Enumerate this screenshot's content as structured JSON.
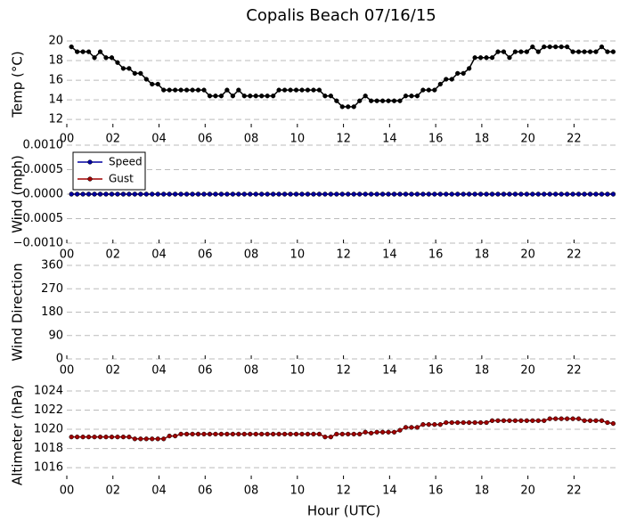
{
  "chart_data": [
    {
      "type": "line",
      "title": "Copalis Beach 07/16/15",
      "ylabel": "Temp (°C)",
      "x": [
        0.2,
        0.45,
        0.7,
        0.95,
        1.2,
        1.45,
        1.7,
        1.95,
        2.2,
        2.45,
        2.7,
        2.95,
        3.2,
        3.45,
        3.7,
        3.95,
        4.2,
        4.45,
        4.7,
        4.95,
        5.2,
        5.45,
        5.7,
        5.95,
        6.2,
        6.45,
        6.7,
        6.95,
        7.2,
        7.45,
        7.7,
        7.95,
        8.2,
        8.45,
        8.7,
        8.95,
        9.2,
        9.45,
        9.7,
        9.95,
        10.2,
        10.45,
        10.7,
        10.95,
        11.2,
        11.45,
        11.7,
        11.95,
        12.2,
        12.45,
        12.7,
        12.95,
        13.2,
        13.45,
        13.7,
        13.95,
        14.2,
        14.45,
        14.7,
        14.95,
        15.2,
        15.45,
        15.7,
        15.95,
        16.2,
        16.45,
        16.7,
        16.95,
        17.2,
        17.45,
        17.7,
        17.95,
        18.2,
        18.45,
        18.7,
        18.95,
        19.2,
        19.45,
        19.7,
        19.95,
        20.2,
        20.45,
        20.7,
        20.95,
        21.2,
        21.45,
        21.7,
        21.95,
        22.2,
        22.45,
        22.7,
        22.95,
        23.2,
        23.45,
        23.7
      ],
      "series": [
        {
          "color": "#000000",
          "values": [
            19.4,
            18.9,
            18.9,
            18.9,
            18.3,
            18.9,
            18.3,
            18.3,
            17.8,
            17.2,
            17.2,
            16.7,
            16.7,
            16.1,
            15.6,
            15.6,
            15,
            15,
            15,
            15,
            15,
            15,
            15,
            15,
            14.4,
            14.4,
            14.4,
            15,
            14.4,
            15,
            14.4,
            14.4,
            14.4,
            14.4,
            14.4,
            14.4,
            15,
            15,
            15,
            15,
            15,
            15,
            15,
            15,
            14.4,
            14.4,
            13.9,
            13.3,
            13.3,
            13.3,
            13.9,
            14.4,
            13.9,
            13.9,
            13.9,
            13.9,
            13.9,
            13.9,
            14.4,
            14.4,
            14.4,
            15,
            15,
            15,
            15.6,
            16.1,
            16.1,
            16.7,
            16.7,
            17.2,
            18.3,
            18.3,
            18.3,
            18.3,
            18.9,
            18.9,
            18.3,
            18.9,
            18.9,
            18.9,
            19.4,
            18.9,
            19.4,
            19.4,
            19.4,
            19.4,
            19.4,
            18.9,
            18.9,
            18.9,
            18.9,
            18.9,
            19.4,
            18.9,
            18.9
          ]
        }
      ],
      "xlim": [
        0,
        23.8
      ],
      "xticks": [
        {
          "value": 0,
          "label": "00"
        },
        {
          "value": 2,
          "label": "02"
        },
        {
          "value": 4,
          "label": "04"
        },
        {
          "value": 6,
          "label": "06"
        },
        {
          "value": 8,
          "label": "08"
        },
        {
          "value": 10,
          "label": "10"
        },
        {
          "value": 12,
          "label": "12"
        },
        {
          "value": 14,
          "label": "14"
        },
        {
          "value": 16,
          "label": "16"
        },
        {
          "value": 18,
          "label": "18"
        },
        {
          "value": 20,
          "label": "20"
        },
        {
          "value": 22,
          "label": "22"
        }
      ],
      "ylim": [
        11.2,
        20
      ],
      "yticks": [
        12,
        14,
        16,
        18,
        20
      ],
      "grid": true
    },
    {
      "type": "line",
      "ylabel": "Wind (mph)",
      "legend": "upper left",
      "x": [
        0.2,
        0.45,
        0.7,
        0.95,
        1.2,
        1.45,
        1.7,
        1.95,
        2.2,
        2.45,
        2.7,
        2.95,
        3.2,
        3.45,
        3.7,
        3.95,
        4.2,
        4.45,
        4.7,
        4.95,
        5.2,
        5.45,
        5.7,
        5.95,
        6.2,
        6.45,
        6.7,
        6.95,
        7.2,
        7.45,
        7.7,
        7.95,
        8.2,
        8.45,
        8.7,
        8.95,
        9.2,
        9.45,
        9.7,
        9.95,
        10.2,
        10.45,
        10.7,
        10.95,
        11.2,
        11.45,
        11.7,
        11.95,
        12.2,
        12.45,
        12.7,
        12.95,
        13.2,
        13.45,
        13.7,
        13.95,
        14.2,
        14.45,
        14.7,
        14.95,
        15.2,
        15.45,
        15.7,
        15.95,
        16.2,
        16.45,
        16.7,
        16.95,
        17.2,
        17.45,
        17.7,
        17.95,
        18.2,
        18.45,
        18.7,
        18.95,
        19.2,
        19.45,
        19.7,
        19.95,
        20.2,
        20.45,
        20.7,
        20.95,
        21.2,
        21.45,
        21.7,
        21.95,
        22.2,
        22.45,
        22.7,
        22.95,
        23.2,
        23.45,
        23.7
      ],
      "series": [
        {
          "name": "Speed",
          "color": "#0000a0",
          "values": [
            0,
            0,
            0,
            0,
            0,
            0,
            0,
            0,
            0,
            0,
            0,
            0,
            0,
            0,
            0,
            0,
            0,
            0,
            0,
            0,
            0,
            0,
            0,
            0,
            0,
            0,
            0,
            0,
            0,
            0,
            0,
            0,
            0,
            0,
            0,
            0,
            0,
            0,
            0,
            0,
            0,
            0,
            0,
            0,
            0,
            0,
            0,
            0,
            0,
            0,
            0,
            0,
            0,
            0,
            0,
            0,
            0,
            0,
            0,
            0,
            0,
            0,
            0,
            0,
            0,
            0,
            0,
            0,
            0,
            0,
            0,
            0,
            0,
            0,
            0,
            0,
            0,
            0,
            0,
            0,
            0,
            0,
            0,
            0,
            0,
            0,
            0,
            0,
            0,
            0,
            0,
            0,
            0,
            0,
            0
          ]
        },
        {
          "name": "Gust",
          "color": "#a00000",
          "values": [
            0,
            0,
            0,
            0,
            0,
            0,
            0,
            0,
            0,
            0,
            0,
            0,
            0,
            0,
            0,
            0,
            0,
            0,
            0,
            0,
            0,
            0,
            0,
            0,
            0,
            0,
            0,
            0,
            0,
            0,
            0,
            0,
            0,
            0,
            0,
            0,
            0,
            0,
            0,
            0,
            0,
            0,
            0,
            0,
            0,
            0,
            0,
            0,
            0,
            0,
            0,
            0,
            0,
            0,
            0,
            0,
            0,
            0,
            0,
            0,
            0,
            0,
            0,
            0,
            0,
            0,
            0,
            0,
            0,
            0,
            0,
            0,
            0,
            0,
            0,
            0,
            0,
            0,
            0,
            0,
            0,
            0,
            0,
            0,
            0,
            0,
            0,
            0,
            0,
            0,
            0,
            0,
            0,
            0,
            0
          ]
        }
      ],
      "xlim": [
        0,
        23.8
      ],
      "xticks": [
        {
          "value": 0,
          "label": "00"
        },
        {
          "value": 2,
          "label": "02"
        },
        {
          "value": 4,
          "label": "04"
        },
        {
          "value": 6,
          "label": "06"
        },
        {
          "value": 8,
          "label": "08"
        },
        {
          "value": 10,
          "label": "10"
        },
        {
          "value": 12,
          "label": "12"
        },
        {
          "value": 14,
          "label": "14"
        },
        {
          "value": 16,
          "label": "16"
        },
        {
          "value": 18,
          "label": "18"
        },
        {
          "value": 20,
          "label": "20"
        },
        {
          "value": 22,
          "label": "22"
        }
      ],
      "ylim": [
        -0.001,
        0.001
      ],
      "yticks": [
        {
          "value": -0.001,
          "label": "−0.0010"
        },
        {
          "value": -0.0005,
          "label": "−0.0005"
        },
        {
          "value": 0,
          "label": "0.0000"
        },
        {
          "value": 0.0005,
          "label": "0.0005"
        },
        {
          "value": 0.001,
          "label": "0.0010"
        }
      ],
      "grid": true
    },
    {
      "type": "line",
      "ylabel": "Wind Direction",
      "series": [],
      "xlim": [
        0,
        23.8
      ],
      "xticks": [
        {
          "value": 0,
          "label": "00"
        },
        {
          "value": 2,
          "label": "02"
        },
        {
          "value": 4,
          "label": "04"
        },
        {
          "value": 6,
          "label": "06"
        },
        {
          "value": 8,
          "label": "08"
        },
        {
          "value": 10,
          "label": "10"
        },
        {
          "value": 12,
          "label": "12"
        },
        {
          "value": 14,
          "label": "14"
        },
        {
          "value": 16,
          "label": "16"
        },
        {
          "value": 18,
          "label": "18"
        },
        {
          "value": 20,
          "label": "20"
        },
        {
          "value": 22,
          "label": "22"
        }
      ],
      "ylim": [
        0,
        360
      ],
      "yticks": [
        0,
        90,
        180,
        270,
        360
      ],
      "grid": true
    },
    {
      "type": "line",
      "ylabel": "Altimeter (hPa)",
      "xlabel": "Hour (UTC)",
      "x": [
        0.2,
        0.45,
        0.7,
        0.95,
        1.2,
        1.45,
        1.7,
        1.95,
        2.2,
        2.45,
        2.7,
        2.95,
        3.2,
        3.45,
        3.7,
        3.95,
        4.2,
        4.45,
        4.7,
        4.95,
        5.2,
        5.45,
        5.7,
        5.95,
        6.2,
        6.45,
        6.7,
        6.95,
        7.2,
        7.45,
        7.7,
        7.95,
        8.2,
        8.45,
        8.7,
        8.95,
        9.2,
        9.45,
        9.7,
        9.95,
        10.2,
        10.45,
        10.7,
        10.95,
        11.2,
        11.45,
        11.7,
        11.95,
        12.2,
        12.45,
        12.7,
        12.95,
        13.2,
        13.45,
        13.7,
        13.95,
        14.2,
        14.45,
        14.7,
        14.95,
        15.2,
        15.45,
        15.7,
        15.95,
        16.2,
        16.45,
        16.7,
        16.95,
        17.2,
        17.45,
        17.7,
        17.95,
        18.2,
        18.45,
        18.7,
        18.95,
        19.2,
        19.45,
        19.7,
        19.95,
        20.2,
        20.45,
        20.7,
        20.95,
        21.2,
        21.45,
        21.7,
        21.95,
        22.2,
        22.45,
        22.7,
        22.95,
        23.2,
        23.45,
        23.7
      ],
      "series": [
        {
          "color": "#a00000",
          "values": [
            1019.2,
            1019.2,
            1019.2,
            1019.2,
            1019.2,
            1019.2,
            1019.2,
            1019.2,
            1019.2,
            1019.2,
            1019.2,
            1019.0,
            1019.0,
            1019.0,
            1019.0,
            1019.0,
            1019.0,
            1019.3,
            1019.3,
            1019.5,
            1019.5,
            1019.5,
            1019.5,
            1019.5,
            1019.5,
            1019.5,
            1019.5,
            1019.5,
            1019.5,
            1019.5,
            1019.5,
            1019.5,
            1019.5,
            1019.5,
            1019.5,
            1019.5,
            1019.5,
            1019.5,
            1019.5,
            1019.5,
            1019.5,
            1019.5,
            1019.5,
            1019.5,
            1019.2,
            1019.2,
            1019.5,
            1019.5,
            1019.5,
            1019.5,
            1019.5,
            1019.7,
            1019.6,
            1019.7,
            1019.7,
            1019.7,
            1019.7,
            1019.9,
            1020.2,
            1020.2,
            1020.2,
            1020.5,
            1020.5,
            1020.5,
            1020.5,
            1020.7,
            1020.7,
            1020.7,
            1020.7,
            1020.7,
            1020.7,
            1020.7,
            1020.7,
            1020.9,
            1020.9,
            1020.9,
            1020.9,
            1020.9,
            1020.9,
            1020.9,
            1020.9,
            1020.9,
            1020.9,
            1021.1,
            1021.1,
            1021.1,
            1021.1,
            1021.1,
            1021.1,
            1020.9,
            1020.9,
            1020.9,
            1020.9,
            1020.7,
            1020.6
          ]
        }
      ],
      "xlim": [
        0,
        23.8
      ],
      "xticks": [
        {
          "value": 0,
          "label": "00"
        },
        {
          "value": 2,
          "label": "02"
        },
        {
          "value": 4,
          "label": "04"
        },
        {
          "value": 6,
          "label": "06"
        },
        {
          "value": 8,
          "label": "08"
        },
        {
          "value": 10,
          "label": "10"
        },
        {
          "value": 12,
          "label": "12"
        },
        {
          "value": 14,
          "label": "14"
        },
        {
          "value": 16,
          "label": "16"
        },
        {
          "value": 18,
          "label": "18"
        },
        {
          "value": 20,
          "label": "20"
        },
        {
          "value": 22,
          "label": "22"
        }
      ],
      "ylim": [
        1014.8,
        1024
      ],
      "yticks": [
        1016,
        1018,
        1020,
        1022,
        1024
      ],
      "grid": true
    }
  ]
}
